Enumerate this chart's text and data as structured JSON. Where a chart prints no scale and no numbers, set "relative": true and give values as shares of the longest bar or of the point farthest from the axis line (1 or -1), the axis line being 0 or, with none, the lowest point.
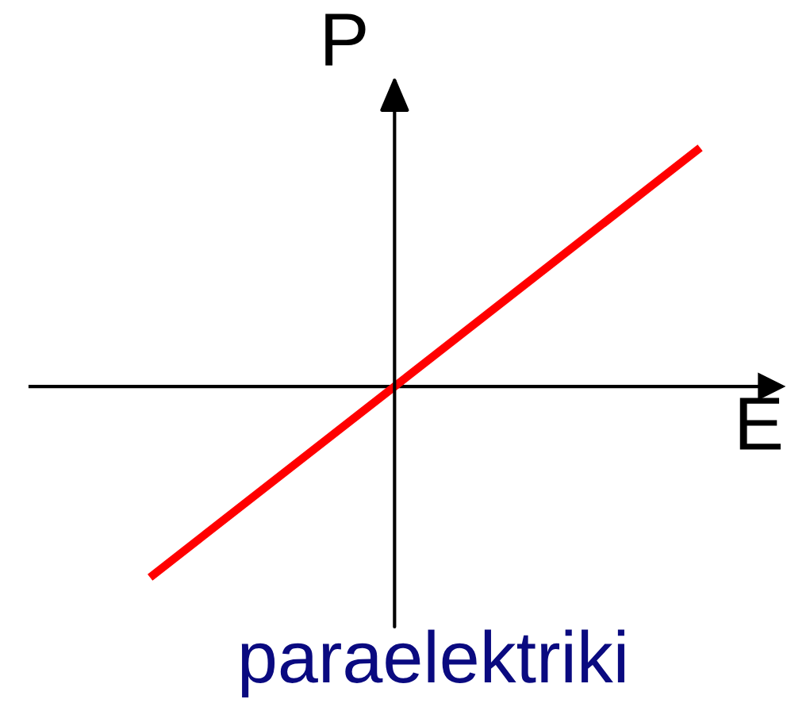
{
  "chart_data": {
    "type": "line",
    "title": "paraelektriki",
    "xlabel": "E",
    "ylabel": "P",
    "relative": true,
    "categories": [
      null,
      null
    ],
    "series": [
      {
        "color": "#ff0000",
        "values": [
          -0.8,
          1
        ]
      }
    ],
    "marker": "none",
    "line_style": "solid"
  }
}
